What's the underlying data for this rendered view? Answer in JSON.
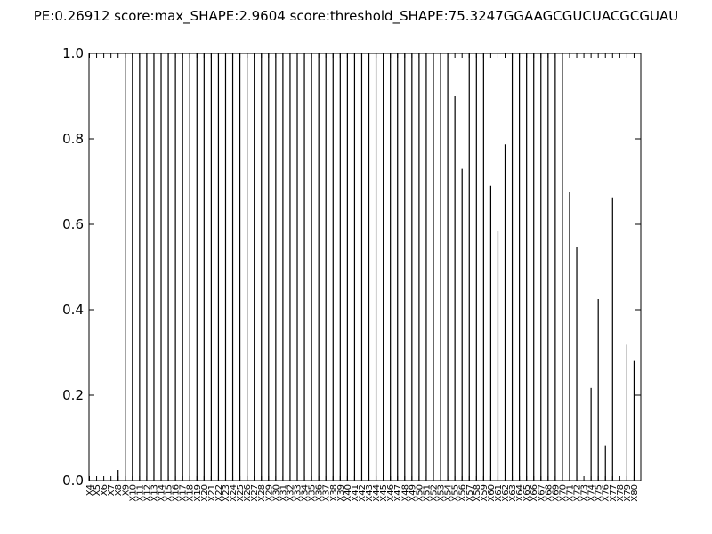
{
  "chart_data": {
    "type": "bar",
    "title": "PE:0.26912 score:max_SHAPE:2.9604 score:threshold_SHAPE:75.3247GGAAGCGUCUACGCGUAU",
    "xlabel": "",
    "ylabel": "",
    "ylim": [
      0,
      1.0
    ],
    "yticks": [
      "0.0",
      "0.2",
      "0.4",
      "0.6",
      "0.8",
      "1.0"
    ],
    "grid": false,
    "categories": [
      "X4",
      "X5",
      "X6",
      "X7",
      "X8",
      "X9",
      "X10",
      "X11",
      "X12",
      "X13",
      "X14",
      "X15",
      "X16",
      "X17",
      "X18",
      "X19",
      "X20",
      "X21",
      "X22",
      "X23",
      "X24",
      "X25",
      "X26",
      "X27",
      "X28",
      "X29",
      "X30",
      "X31",
      "X32",
      "X33",
      "X34",
      "X35",
      "X36",
      "X37",
      "X38",
      "X39",
      "X40",
      "X41",
      "X42",
      "X43",
      "X44",
      "X45",
      "X46",
      "X47",
      "X48",
      "X49",
      "X50",
      "X51",
      "X52",
      "X53",
      "X54",
      "X55",
      "X56",
      "X57",
      "X58",
      "X59",
      "X60",
      "X61",
      "X62",
      "X63",
      "X64",
      "X65",
      "X66",
      "X67",
      "X68",
      "X69",
      "X70",
      "X71",
      "X72",
      "X73",
      "X74",
      "X75",
      "X76",
      "X77",
      "X78",
      "X79",
      "X80"
    ],
    "values": [
      0,
      0,
      0,
      0,
      0.025,
      1,
      1,
      1,
      1,
      1,
      1,
      1,
      1,
      1,
      1,
      1,
      1,
      1,
      1,
      1,
      1,
      1,
      1,
      1,
      1,
      1,
      1,
      1,
      1,
      1,
      1,
      1,
      1,
      1,
      1,
      1,
      1,
      1,
      1,
      1,
      1,
      1,
      1,
      1,
      1,
      1,
      1,
      1,
      1,
      1,
      1,
      0.9,
      0.73,
      1,
      1,
      1,
      0.69,
      0.585,
      0.787,
      1,
      1,
      1,
      1,
      1,
      1,
      1,
      1,
      0.675,
      0.548,
      0,
      0.217,
      0.425,
      0.082,
      0.663,
      0,
      0.318,
      0.28
    ]
  }
}
